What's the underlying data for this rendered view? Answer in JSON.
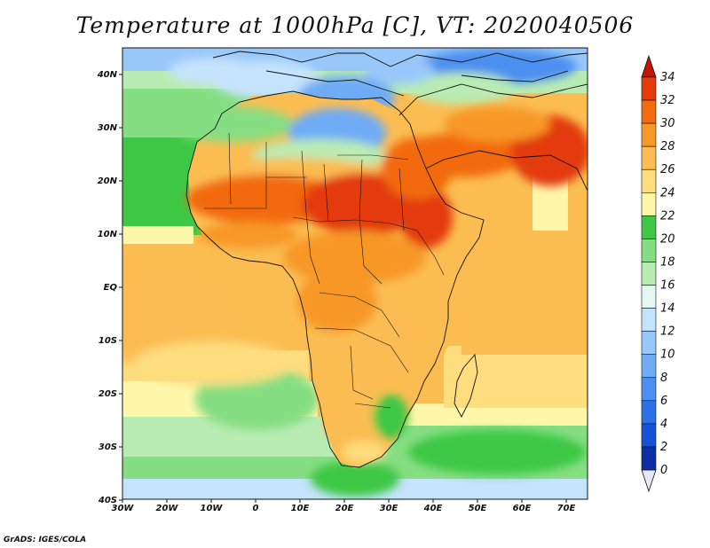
{
  "title": "Temperature at 1000hPa [C], VT: 2020040506",
  "footer": "GrADS: IGES/COLA",
  "map": {
    "lon_ticks": [
      "30W",
      "20W",
      "10W",
      "0",
      "10E",
      "20E",
      "30E",
      "40E",
      "50E",
      "60E",
      "70E"
    ],
    "lat_ticks": [
      "40N",
      "30N",
      "20N",
      "10N",
      "EQ",
      "10S",
      "20S",
      "30S",
      "40S"
    ],
    "lon_range": [
      -30,
      75
    ],
    "lat_range": [
      -40,
      44
    ]
  },
  "colorbar": {
    "levels": [
      "0",
      "2",
      "4",
      "6",
      "8",
      "10",
      "12",
      "14",
      "16",
      "18",
      "20",
      "22",
      "24",
      "26",
      "28",
      "30",
      "32",
      "34"
    ],
    "colors": [
      "#0a1d6e",
      "#0d2fa3",
      "#1553d4",
      "#2a72e6",
      "#4b8ff0",
      "#70acf5",
      "#98c8fa",
      "#c4e3fc",
      "#e6f6f3",
      "#b9ecb3",
      "#86de82",
      "#3ec845",
      "#fef7aa",
      "#fddd7e",
      "#fbbd52",
      "#f79828",
      "#f26b0e",
      "#e33b0b",
      "#c41406"
    ]
  }
}
